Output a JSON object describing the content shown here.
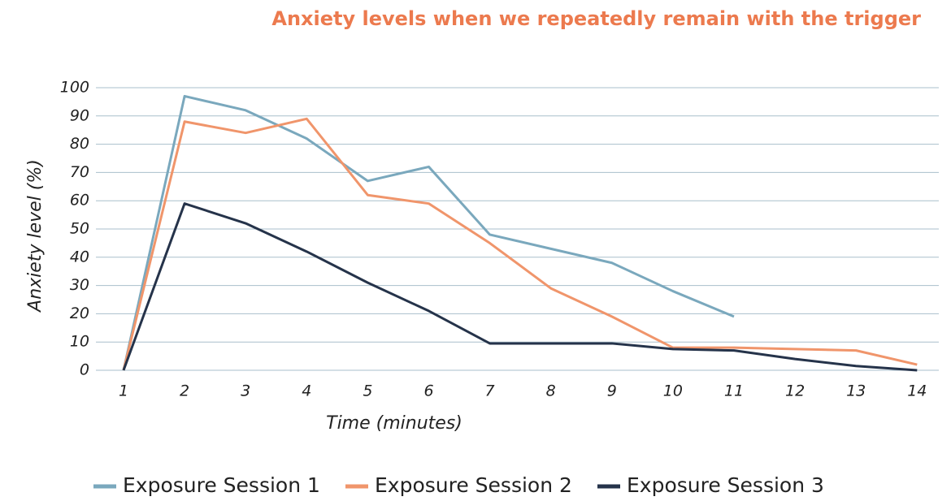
{
  "chart_data": {
    "type": "line",
    "title": "Anxiety levels when we repeatedly remain with the trigger",
    "x_label": "Time (minutes)",
    "y_label": "Anxiety level (%)",
    "categories": [
      "1",
      "2",
      "3",
      "4",
      "5",
      "6",
      "7",
      "8",
      "9",
      "10",
      "11",
      "12",
      "13",
      "14"
    ],
    "series": [
      {
        "name": "Exposure Session 1",
        "color": "#7aa8bd",
        "values": [
          0,
          97,
          92,
          82,
          67,
          72,
          48,
          43,
          38,
          28,
          19,
          null,
          null,
          null
        ]
      },
      {
        "name": "Exposure Session 2",
        "color": "#f0956b",
        "values": [
          0,
          88,
          84,
          89,
          62,
          59,
          45,
          29,
          19,
          8,
          8,
          7.5,
          7,
          2
        ]
      },
      {
        "name": "Exposure Session 3",
        "color": "#25334a",
        "values": [
          0,
          59,
          52,
          42,
          31,
          21,
          9.5,
          9.5,
          9.5,
          7.5,
          7,
          4,
          1.5,
          0
        ]
      }
    ],
    "ylim": [
      0,
      100
    ],
    "yticks": [
      0,
      10,
      20,
      30,
      40,
      50,
      60,
      70,
      80,
      90,
      100
    ],
    "grid": true,
    "legend": "bottom"
  }
}
